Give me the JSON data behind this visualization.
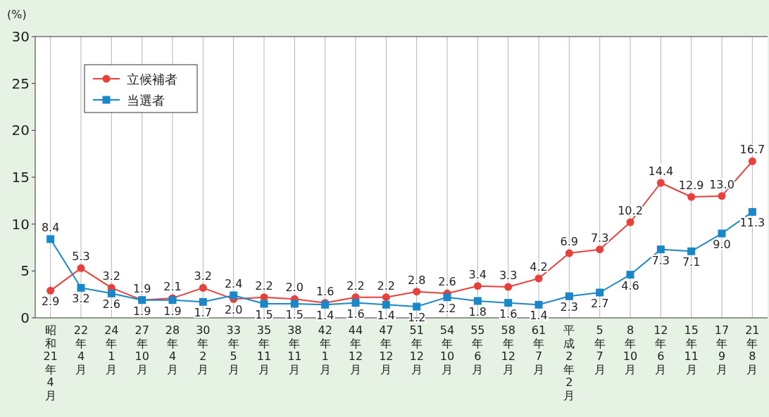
{
  "chart_data": {
    "type": "line",
    "ylabel": "(%)",
    "categories": [
      "昭和21年4月",
      "22年4月",
      "24年1月",
      "27年10月",
      "28年4月",
      "30年2月",
      "33年5月",
      "35年11月",
      "38年11月",
      "42年1月",
      "44年12月",
      "47年12月",
      "51年12月",
      "54年10月",
      "55年6月",
      "58年12月",
      "61年7月",
      "平成2年2月",
      "5年7月",
      "8年10月",
      "12年6月",
      "15年11月",
      "17年9月",
      "21年8月"
    ],
    "series": [
      {
        "name": "立候補者",
        "color": "#e8413c",
        "marker": "circle",
        "values": [
          2.9,
          5.3,
          3.2,
          1.9,
          2.1,
          3.2,
          2.0,
          2.2,
          2.0,
          1.6,
          2.2,
          2.2,
          2.8,
          2.6,
          3.4,
          3.3,
          4.2,
          6.9,
          7.3,
          10.2,
          14.4,
          12.9,
          13.0,
          16.7
        ],
        "value_labels": [
          "2.9",
          "5.3",
          "3.2",
          "1.9",
          "2.1",
          "3.2",
          "2.0",
          "2.2",
          "2.0",
          "1.6",
          "2.2",
          "2.2",
          "2.8",
          "2.6",
          "3.4",
          "3.3",
          "4.2",
          "6.9",
          "7.3",
          "10.2",
          "14.4",
          "12.9",
          "13.0",
          "16.7"
        ]
      },
      {
        "name": "当選者",
        "color": "#1a87c8",
        "marker": "square",
        "values": [
          8.4,
          3.2,
          2.6,
          1.9,
          1.9,
          1.7,
          2.4,
          1.5,
          1.5,
          1.4,
          1.6,
          1.4,
          1.2,
          2.2,
          1.8,
          1.6,
          1.4,
          2.3,
          2.7,
          4.6,
          7.3,
          7.1,
          9.0,
          11.3
        ],
        "value_labels": [
          "8.4",
          "3.2",
          "2.6",
          "1.9",
          "1.9",
          "1.7",
          "2.4",
          "1.5",
          "1.5",
          "1.4",
          "1.6",
          "1.4",
          "1.2",
          "2.2",
          "1.8",
          "1.6",
          "1.4",
          "2.3",
          "2.7",
          "4.6",
          "7.3",
          "7.1",
          "9.0",
          "11.3"
        ]
      }
    ],
    "ylim": [
      0,
      30
    ],
    "yticks": [
      0,
      5,
      10,
      15,
      20,
      25,
      30
    ],
    "grid": "x",
    "legend": "top left"
  }
}
